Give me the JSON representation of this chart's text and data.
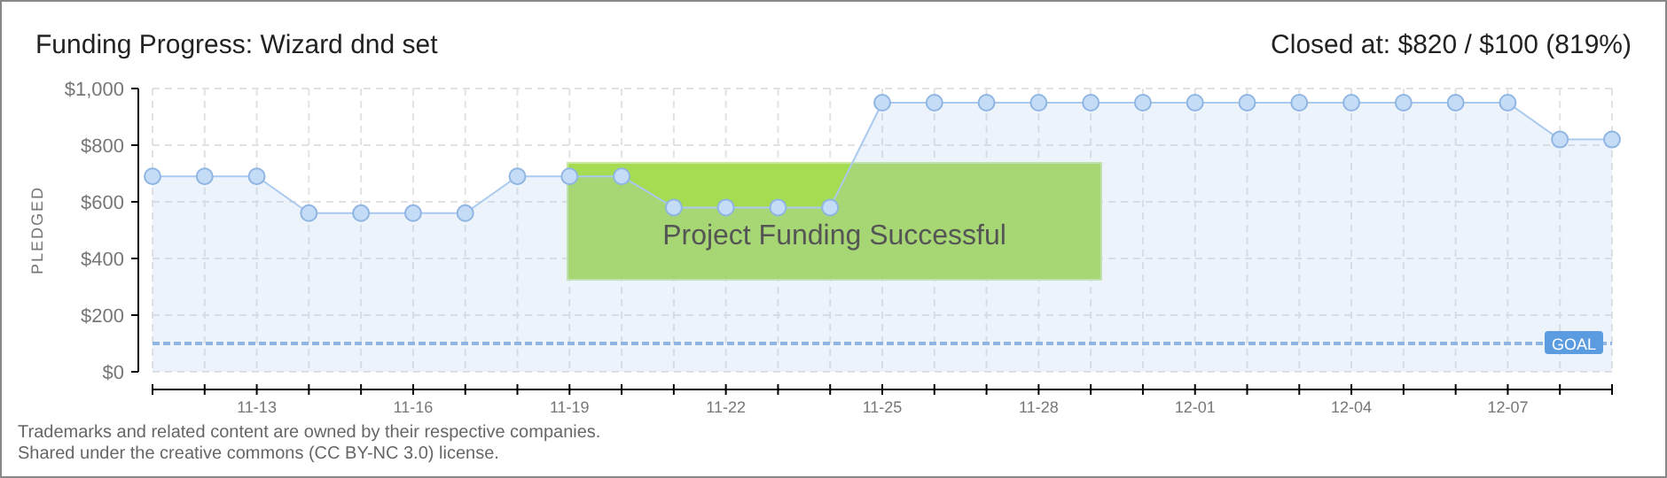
{
  "chart_data": {
    "type": "area",
    "title": "Funding Progress: Wizard dnd set",
    "subtitle": "Closed at: $820 / $100 (819%)",
    "ylabel": "PLEDGED",
    "x": [
      "--11-11",
      "--11-12",
      "--11-13",
      "--11-14",
      "--11-15",
      "--11-16",
      "--11-17",
      "--11-18",
      "--11-19",
      "--11-20",
      "--11-21",
      "--11-22",
      "--11-23",
      "--11-24",
      "--11-25",
      "--11-26",
      "--11-27",
      "--11-28",
      "--11-29",
      "--11-30",
      "--12-01",
      "--12-02",
      "--12-03",
      "--12-04",
      "--12-05",
      "--12-06",
      "--12-07",
      "--12-08",
      "--12-09"
    ],
    "series": [
      {
        "color": "#a9c9ef",
        "values": [
          690,
          690,
          690,
          560,
          560,
          560,
          560,
          690,
          690,
          690,
          580,
          580,
          580,
          580,
          950,
          950,
          950,
          950,
          950,
          950,
          950,
          950,
          950,
          950,
          950,
          950,
          950,
          820,
          820
        ]
      }
    ],
    "marker": "circle",
    "grid": true,
    "ylim": [
      0,
      1000
    ],
    "yticks": [
      {
        "value": 0,
        "label": "$0"
      },
      {
        "value": 200,
        "label": "$200"
      },
      {
        "value": 400,
        "label": "$400"
      },
      {
        "value": 600,
        "label": "$600"
      },
      {
        "value": 800,
        "label": "$800"
      },
      {
        "value": 1000,
        "label": "$1,000"
      }
    ],
    "xlim": [
      "--11-11",
      "--12-09"
    ],
    "xticks": [
      {
        "value": "--11-11",
        "label": null
      },
      {
        "value": "--11-12",
        "label": null
      },
      {
        "value": "--11-13",
        "label": "11-13"
      },
      {
        "value": "--11-14",
        "label": null
      },
      {
        "value": "--11-15",
        "label": null
      },
      {
        "value": "--11-16",
        "label": "11-16"
      },
      {
        "value": "--11-17",
        "label": null
      },
      {
        "value": "--11-18",
        "label": null
      },
      {
        "value": "--11-19",
        "label": "11-19"
      },
      {
        "value": "--11-20",
        "label": null
      },
      {
        "value": "--11-21",
        "label": null
      },
      {
        "value": "--11-22",
        "label": "11-22"
      },
      {
        "value": "--11-23",
        "label": null
      },
      {
        "value": "--11-24",
        "label": null
      },
      {
        "value": "--11-25",
        "label": "11-25"
      },
      {
        "value": "--11-26",
        "label": null
      },
      {
        "value": "--11-27",
        "label": null
      },
      {
        "value": "--11-28",
        "label": "11-28"
      },
      {
        "value": "--11-29",
        "label": null
      },
      {
        "value": "--11-30",
        "label": null
      },
      {
        "value": "--12-01",
        "label": "12-01"
      },
      {
        "value": "--12-02",
        "label": null
      },
      {
        "value": "--12-03",
        "label": null
      },
      {
        "value": "--12-04",
        "label": "12-04"
      },
      {
        "value": "--12-05",
        "label": null
      },
      {
        "value": "--12-06",
        "label": null
      },
      {
        "value": "--12-07",
        "label": "12-07"
      },
      {
        "value": "--12-08",
        "label": null
      },
      {
        "value": "--12-09",
        "label": null
      }
    ],
    "ref_lines": [
      {
        "axis": "y",
        "value": 100,
        "label": "GOAL",
        "color": "#8fb5e3",
        "line_style": "dashed"
      }
    ],
    "annotations": [
      "Project Funding Successful",
      "Trademarks and related content are owned by their respective companies.",
      "Shared under the creative commons (CC BY-NC 3.0) license."
    ]
  }
}
